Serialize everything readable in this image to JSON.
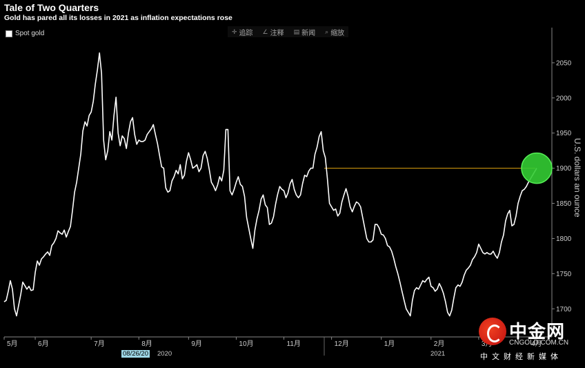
{
  "header": {
    "title": "Tale of Two Quarters",
    "subtitle": "Gold has pared all its losses in 2021 as inflation expectations rose"
  },
  "legend": {
    "label": "Spot gold"
  },
  "toolbar": [
    {
      "icon": "✛",
      "label": "追踪"
    },
    {
      "icon": "∠",
      "label": "注释"
    },
    {
      "icon": "▤",
      "label": "新闻"
    },
    {
      "icon": "⌕",
      "label": "缩放"
    }
  ],
  "date_badge": "08/26/20",
  "years": [
    "2020",
    "2021"
  ],
  "watermark": {
    "brand": "中金网",
    "domain": "CNGOLD.COM.CN",
    "tagline": "中文财经新媒体"
  },
  "colors": {
    "line": "#ffffff",
    "reference": "#b8860b",
    "highlight": "#33cc33"
  },
  "chart_data": {
    "type": "line",
    "title": "Tale of Two Quarters",
    "ylabel": "U.S. dollars an ounce",
    "ylim": [
      1660,
      2100
    ],
    "yticks": [
      1700,
      1750,
      1800,
      1850,
      1900,
      1950,
      2000,
      2050
    ],
    "month_labels": [
      "5月",
      "6月",
      "7月",
      "8月",
      "9月",
      "10月",
      "11月",
      "12月",
      "1月",
      "2月",
      "3月",
      "4月"
    ],
    "month_start_index": [
      0,
      15,
      42,
      65,
      89,
      112,
      135,
      158,
      182,
      206,
      229,
      253
    ],
    "series": [
      {
        "name": "Spot gold",
        "values": [
          1710,
          1712,
          1725,
          1740,
          1728,
          1700,
          1690,
          1705,
          1720,
          1738,
          1733,
          1728,
          1732,
          1726,
          1727,
          1752,
          1768,
          1762,
          1771,
          1774,
          1778,
          1781,
          1776,
          1790,
          1794,
          1800,
          1811,
          1808,
          1806,
          1812,
          1802,
          1810,
          1817,
          1840,
          1866,
          1880,
          1900,
          1920,
          1953,
          1966,
          1960,
          1975,
          1980,
          1995,
          2020,
          2040,
          2064,
          2035,
          1940,
          1912,
          1925,
          1952,
          1940,
          1975,
          2001,
          1950,
          1932,
          1946,
          1942,
          1928,
          1950,
          1966,
          1972,
          1948,
          1934,
          1940,
          1938,
          1938,
          1940,
          1948,
          1952,
          1956,
          1962,
          1948,
          1935,
          1918,
          1902,
          1900,
          1872,
          1866,
          1868,
          1882,
          1888,
          1897,
          1892,
          1905,
          1885,
          1890,
          1910,
          1922,
          1912,
          1900,
          1902,
          1905,
          1895,
          1900,
          1918,
          1924,
          1914,
          1898,
          1880,
          1875,
          1868,
          1876,
          1888,
          1882,
          1897,
          1955,
          1955,
          1868,
          1862,
          1870,
          1880,
          1888,
          1877,
          1874,
          1860,
          1830,
          1815,
          1800,
          1786,
          1812,
          1828,
          1840,
          1856,
          1862,
          1848,
          1844,
          1820,
          1822,
          1831,
          1849,
          1863,
          1874,
          1870,
          1868,
          1858,
          1865,
          1878,
          1884,
          1870,
          1862,
          1858,
          1862,
          1878,
          1890,
          1888,
          1896,
          1900,
          1900,
          1920,
          1930,
          1945,
          1952,
          1925,
          1915,
          1885,
          1850,
          1845,
          1840,
          1842,
          1832,
          1836,
          1852,
          1862,
          1871,
          1860,
          1845,
          1838,
          1846,
          1852,
          1850,
          1845,
          1830,
          1815,
          1800,
          1795,
          1795,
          1798,
          1820,
          1820,
          1815,
          1806,
          1805,
          1800,
          1790,
          1788,
          1782,
          1772,
          1760,
          1750,
          1738,
          1725,
          1712,
          1700,
          1695,
          1690,
          1712,
          1726,
          1730,
          1728,
          1734,
          1740,
          1738,
          1742,
          1745,
          1732,
          1730,
          1725,
          1728,
          1736,
          1730,
          1722,
          1710,
          1695,
          1690,
          1698,
          1715,
          1730,
          1734,
          1732,
          1738,
          1748,
          1755,
          1758,
          1762,
          1770,
          1774,
          1780,
          1792,
          1786,
          1780,
          1778,
          1780,
          1778,
          1778,
          1782,
          1776,
          1772,
          1780,
          1795,
          1805,
          1825,
          1835,
          1840,
          1818,
          1820,
          1832,
          1850,
          1860,
          1868,
          1870,
          1874,
          1880,
          1885,
          1890,
          1895,
          1900
        ]
      }
    ],
    "reference_line": {
      "value": 1900
    },
    "annotation": "Highlight circle on latest value near 1900"
  }
}
